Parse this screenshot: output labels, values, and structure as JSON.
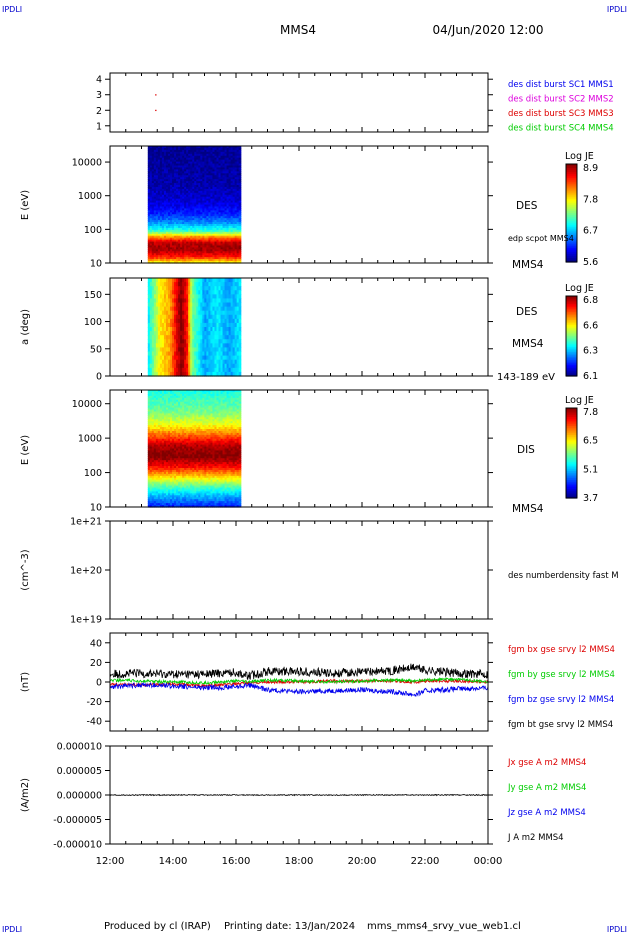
{
  "header": {
    "corner_left": "IPDLI",
    "corner_right": "IPDLI",
    "spacecraft": "MMS4",
    "datetime": "04/Jun/2020 12:00"
  },
  "footer": {
    "produced_by": "Produced by cl (IRAP)",
    "printing_date": "Printing date: 13/Jan/2024",
    "filename": "mms_mms4_srvy_vue_web1.cl",
    "corner_left": "IPDLI",
    "corner_right": "IPDLI"
  },
  "time_axis": {
    "tick_labels": [
      "12:00",
      "14:00",
      "16:00",
      "18:00",
      "20:00",
      "22:00",
      "00:00"
    ],
    "range_hours": [
      12,
      24
    ]
  },
  "colors": {
    "red": "#dd0000",
    "green": "#00cc00",
    "blue": "#0000ee",
    "magenta": "#dd00dd",
    "black": "#000000"
  },
  "chart_data": [
    {
      "type": "scatter",
      "panel": "burst-flags",
      "ylabel": "",
      "ylim": [
        0.6,
        4.4
      ],
      "yticks": [
        1,
        2,
        3,
        4
      ],
      "legend": [
        {
          "label": "des dist burst SC1 MMS1",
          "color": "#0000ee"
        },
        {
          "label": "des dist burst SC2 MMS2",
          "color": "#dd00dd"
        },
        {
          "label": "des dist burst SC3 MMS3",
          "color": "#dd0000"
        },
        {
          "label": "des dist burst SC4 MMS4",
          "color": "#00cc00"
        }
      ],
      "points": [
        {
          "x": 13.45,
          "y": 3,
          "color": "#dd0000"
        },
        {
          "x": 13.45,
          "y": 2,
          "color": "#dd0000"
        }
      ]
    },
    {
      "type": "heatmap",
      "panel": "des-energy-spectrogram",
      "ylabel": "E (eV)",
      "yscale": "log",
      "ylim": [
        10,
        30000
      ],
      "yticks": [
        10,
        100,
        1000,
        10000
      ],
      "data_span_hours": [
        13.2,
        16.15
      ],
      "side_labels": [
        "DES",
        "edp scpot MMS4",
        "MMS4"
      ],
      "colorbar": {
        "title": "Log JE",
        "min": 5.6,
        "max": 8.9,
        "ticks": [
          "8.9",
          "7.8",
          "6.7",
          "5.6"
        ]
      },
      "energy_profile": [
        {
          "e": 10,
          "v": 7.6
        },
        {
          "e": 15,
          "v": 8.4
        },
        {
          "e": 25,
          "v": 8.8
        },
        {
          "e": 40,
          "v": 8.7
        },
        {
          "e": 60,
          "v": 8.0
        },
        {
          "e": 90,
          "v": 7.0
        },
        {
          "e": 150,
          "v": 6.5
        },
        {
          "e": 300,
          "v": 6.1
        },
        {
          "e": 600,
          "v": 5.9
        },
        {
          "e": 2000,
          "v": 5.75
        },
        {
          "e": 10000,
          "v": 5.7
        },
        {
          "e": 30000,
          "v": 5.65
        }
      ]
    },
    {
      "type": "heatmap",
      "panel": "des-pitch-angle",
      "ylabel": "a (deg)",
      "ylim": [
        0,
        180
      ],
      "yticks": [
        0,
        50,
        100,
        150
      ],
      "data_span_hours": [
        13.2,
        16.15
      ],
      "side_labels": [
        "DES",
        "MMS4",
        "143-189 eV"
      ],
      "colorbar": {
        "title": "Log JE",
        "min": 6.1,
        "max": 6.8,
        "ticks": [
          "6.8",
          "6.6",
          "6.3",
          "6.1"
        ]
      },
      "time_profile": [
        {
          "t": 13.2,
          "v": 6.35
        },
        {
          "t": 13.6,
          "v": 6.55
        },
        {
          "t": 13.9,
          "v": 6.6
        },
        {
          "t": 14.1,
          "v": 6.72
        },
        {
          "t": 14.25,
          "v": 6.8
        },
        {
          "t": 14.45,
          "v": 6.7
        },
        {
          "t": 14.6,
          "v": 6.45
        },
        {
          "t": 15.0,
          "v": 6.3
        },
        {
          "t": 15.4,
          "v": 6.35
        },
        {
          "t": 15.8,
          "v": 6.3
        },
        {
          "t": 16.15,
          "v": 6.35
        }
      ]
    },
    {
      "type": "heatmap",
      "panel": "dis-energy-spectrogram",
      "ylabel": "E (eV)",
      "yscale": "log",
      "ylim": [
        10,
        25000
      ],
      "yticks": [
        10,
        100,
        1000,
        10000
      ],
      "data_span_hours": [
        13.2,
        16.15
      ],
      "side_labels": [
        "DIS",
        "MMS4"
      ],
      "colorbar": {
        "title": "Log JE",
        "min": 3.7,
        "max": 7.8,
        "ticks": [
          "7.8",
          "6.5",
          "5.1",
          "3.7"
        ]
      },
      "energy_profile": [
        {
          "e": 10,
          "v": 4.3
        },
        {
          "e": 20,
          "v": 4.9
        },
        {
          "e": 40,
          "v": 5.6
        },
        {
          "e": 80,
          "v": 6.5
        },
        {
          "e": 150,
          "v": 7.3
        },
        {
          "e": 300,
          "v": 7.8
        },
        {
          "e": 600,
          "v": 7.6
        },
        {
          "e": 1200,
          "v": 6.9
        },
        {
          "e": 2500,
          "v": 6.2
        },
        {
          "e": 6000,
          "v": 5.7
        },
        {
          "e": 25000,
          "v": 5.3
        }
      ]
    },
    {
      "type": "line",
      "panel": "des-density",
      "ylabel": "(cm^-3)",
      "yscale": "log",
      "ylim": [
        1e+19,
        1e+21
      ],
      "ytick_labels": [
        "1e+21",
        "1e+20",
        "1e+19"
      ],
      "legend": [
        {
          "label": "des numberdensity fast M",
          "color": "#000000"
        }
      ],
      "series": []
    },
    {
      "type": "line",
      "panel": "fgm-b-field",
      "ylabel": "(nT)",
      "ylim": [
        -50,
        50
      ],
      "yticks": [
        40,
        20,
        0,
        -20,
        -40
      ],
      "legend": [
        {
          "label": "fgm bx gse srvy l2 MMS4",
          "color": "#dd0000"
        },
        {
          "label": "fgm by gse srvy l2 MMS4",
          "color": "#00cc00"
        },
        {
          "label": "fgm bz gse srvy l2 MMS4",
          "color": "#0000ee"
        },
        {
          "label": "fgm bt gse srvy l2 MMS4",
          "color": "#000000"
        }
      ],
      "series": [
        {
          "component": "bx",
          "color": "#dd0000",
          "x": [
            12.0,
            13.0,
            14.0,
            15.0,
            16.0,
            16.4,
            17.0,
            18.0,
            19.0,
            20.0,
            21.0,
            21.7,
            22.0,
            23.0,
            24.0
          ],
          "y": [
            -2,
            -3,
            -2,
            -4,
            -2,
            -1,
            0,
            0,
            1,
            1,
            1,
            0,
            1,
            1,
            0
          ]
        },
        {
          "component": "by",
          "color": "#00cc00",
          "x": [
            12.0,
            13.0,
            14.0,
            15.0,
            16.0,
            16.4,
            17.0,
            18.0,
            19.0,
            20.0,
            21.0,
            21.7,
            22.0,
            23.0,
            24.0
          ],
          "y": [
            2,
            1,
            0,
            -1,
            1,
            0,
            2,
            1,
            0,
            1,
            2,
            1,
            2,
            3,
            0
          ]
        },
        {
          "component": "bz",
          "color": "#0000ee",
          "x": [
            12.0,
            13.0,
            14.0,
            15.0,
            16.0,
            16.4,
            17.0,
            18.0,
            19.0,
            20.0,
            21.0,
            21.7,
            22.0,
            23.0,
            24.0
          ],
          "y": [
            -5,
            -3,
            -4,
            -6,
            -5,
            -3,
            -8,
            -10,
            -9,
            -8,
            -10,
            -13,
            -9,
            -7,
            -6
          ]
        },
        {
          "component": "bt",
          "color": "#000000",
          "x": [
            12.0,
            13.0,
            14.0,
            15.0,
            16.0,
            16.4,
            17.0,
            18.0,
            19.0,
            20.0,
            21.0,
            21.7,
            22.0,
            23.0,
            24.0
          ],
          "y": [
            8,
            9,
            8,
            8,
            10,
            6,
            11,
            11,
            9,
            10,
            12,
            15,
            12,
            9,
            8
          ]
        }
      ]
    },
    {
      "type": "line",
      "panel": "current-density",
      "ylabel": "(A/m2)",
      "ylim": [
        -1e-05,
        1e-05
      ],
      "ytick_labels": [
        "0.000010",
        "0.000005",
        "0.000000",
        "-0.000005",
        "-0.000010"
      ],
      "legend": [
        {
          "label": "Jx gse A m2 MMS4",
          "color": "#dd0000"
        },
        {
          "label": "Jy gse A m2 MMS4",
          "color": "#00cc00"
        },
        {
          "label": "Jz gse A m2 MMS4",
          "color": "#0000ee"
        },
        {
          "label": "J A m2 MMS4",
          "color": "#000000"
        }
      ],
      "series": [
        {
          "component": "J",
          "color": "#000000",
          "x": [
            12.0,
            24.0
          ],
          "y": [
            0,
            0
          ]
        }
      ]
    }
  ]
}
